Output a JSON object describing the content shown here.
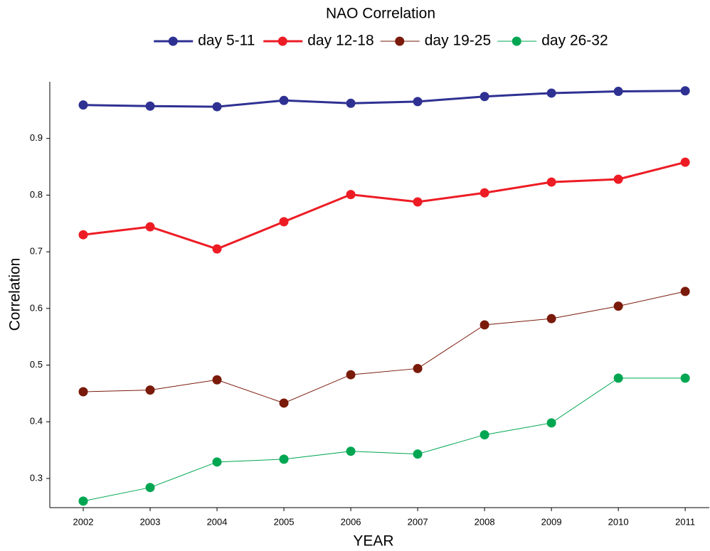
{
  "chart_data": {
    "type": "line",
    "title": "NAO Correlation",
    "x_label": "YEAR",
    "y_label": "Correlation",
    "x": [
      2002,
      2003,
      2004,
      2005,
      2006,
      2007,
      2008,
      2009,
      2010,
      2011
    ],
    "xlim": [
      2001.5,
      2011.36
    ],
    "xticks": [
      2002,
      2003,
      2004,
      2005,
      2006,
      2007,
      2008,
      2009,
      2010,
      2011
    ],
    "ylim": [
      0.2485,
      1.0
    ],
    "yticks": [
      0.3,
      0.4,
      0.5,
      0.6,
      0.7,
      0.8,
      0.9
    ],
    "grid": false,
    "legend": "top",
    "series": [
      {
        "name": "day 5-11",
        "color": "#2e3192",
        "width": 3,
        "values": [
          0.959,
          0.957,
          0.956,
          0.967,
          0.962,
          0.965,
          0.974,
          0.98,
          0.983,
          0.984
        ]
      },
      {
        "name": "day 12-18",
        "color": "#ed1c24",
        "width": 3,
        "values": [
          0.73,
          0.744,
          0.705,
          0.753,
          0.801,
          0.788,
          0.804,
          0.823,
          0.828,
          0.858
        ]
      },
      {
        "name": "day 19-25",
        "color": "#7a1a0a",
        "width": 1,
        "values": [
          0.453,
          0.456,
          0.474,
          0.433,
          0.483,
          0.494,
          0.571,
          0.582,
          0.604,
          0.63
        ]
      },
      {
        "name": "day 26-32",
        "color": "#00a651",
        "width": 1,
        "values": [
          0.26,
          0.284,
          0.329,
          0.334,
          0.348,
          0.343,
          0.377,
          0.398,
          0.477,
          0.477
        ]
      }
    ]
  }
}
